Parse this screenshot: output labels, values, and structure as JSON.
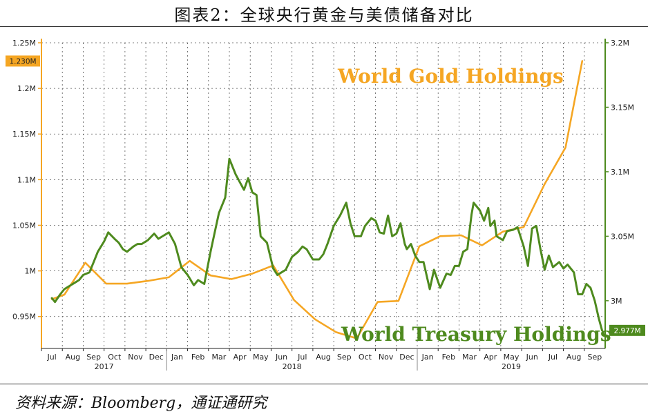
{
  "title": "图表2：全球央行黄金与美债储备对比",
  "source": "资料来源：Bloomberg，通证通研究",
  "colors": {
    "gold": "#F5A623",
    "treasury": "#4E8A1E",
    "axis": "#F5A623",
    "axis_right": "#4E8A1E"
  },
  "chart_data": {
    "type": "line",
    "y_left": {
      "range": [
        0.915,
        1.25
      ],
      "ticks": [
        1.25,
        1.2,
        1.15,
        1.1,
        1.05,
        1.0,
        0.95
      ],
      "tick_labels": [
        "1.25M",
        "1.2M",
        "1.15M",
        "1.1M",
        "1.05M",
        "1M",
        "0.95M"
      ]
    },
    "y_right": {
      "range": [
        2.963,
        3.2
      ],
      "ticks": [
        3.2,
        3.15,
        3.1,
        3.05,
        3.0
      ],
      "tick_labels": [
        "3.2M",
        "3.15M",
        "3.1M",
        "3.05M",
        "3M"
      ]
    },
    "x_ticks": [
      "Jul",
      "Aug",
      "Sep",
      "Oct",
      "Nov",
      "Dec",
      "Jan",
      "Feb",
      "Mar",
      "Apr",
      "May",
      "Jun",
      "Jul",
      "Aug",
      "Sep",
      "Oct",
      "Nov",
      "Dec",
      "Jan",
      "Feb",
      "Mar",
      "Apr",
      "May",
      "Jun",
      "Jul",
      "Aug",
      "Sep"
    ],
    "years": [
      "2017",
      "2018",
      "2019"
    ],
    "series": [
      {
        "name": "World Gold Holdings",
        "axis": "left",
        "x": [
          0,
          0.6,
          1.6,
          2.6,
          3.6,
          4.6,
          5.6,
          6.6,
          7.6,
          8.6,
          9.6,
          10.6,
          11.6,
          12.6,
          13.6,
          14.6,
          15.6,
          16.6,
          17.6,
          18.6,
          19.6,
          20.6,
          21.6,
          22.6,
          23.6,
          24.6,
          25.4
        ],
        "values": [
          0.969,
          0.974,
          1.009,
          0.986,
          0.986,
          0.989,
          0.993,
          1.011,
          0.995,
          0.991,
          0.997,
          1.006,
          0.968,
          0.947,
          0.933,
          0.926,
          0.966,
          0.967,
          1.027,
          1.038,
          1.039,
          1.028,
          1.043,
          1.048,
          1.0952,
          1.1352,
          1.23
        ]
      },
      {
        "name": "World Treasury Holdings",
        "axis": "right",
        "x": [
          0,
          0.15,
          0.4,
          0.6,
          0.9,
          1.1,
          1.3,
          1.5,
          1.8,
          2.0,
          2.2,
          2.5,
          2.7,
          3.0,
          3.2,
          3.4,
          3.6,
          3.9,
          4.1,
          4.3,
          4.6,
          4.9,
          5.1,
          5.3,
          5.6,
          5.9,
          6.2,
          6.5,
          6.8,
          7.0,
          7.3,
          7.6,
          7.8,
          8.0,
          8.3,
          8.5,
          8.8,
          9.0,
          9.2,
          9.4,
          9.6,
          9.8,
          10.0,
          10.3,
          10.6,
          10.8,
          11.0,
          11.2,
          11.5,
          11.8,
          12.0,
          12.2,
          12.5,
          12.8,
          13.0,
          13.2,
          13.5,
          13.8,
          14.1,
          14.3,
          14.5,
          14.8,
          15.0,
          15.3,
          15.5,
          15.7,
          15.9,
          16.1,
          16.3,
          16.5,
          16.7,
          16.9,
          17.0,
          17.2,
          17.4,
          17.6,
          17.8,
          18.1,
          18.3,
          18.6,
          18.9,
          19.1,
          19.3,
          19.5,
          19.7,
          19.9,
          20.1,
          20.2,
          20.5,
          20.7,
          20.9,
          21.0,
          21.2,
          21.3,
          21.6,
          21.8,
          22.1,
          22.3,
          22.5,
          22.6,
          22.8,
          23.0,
          23.2,
          23.4,
          23.6,
          23.8,
          24.0,
          24.3,
          24.5,
          24.7,
          25.0,
          25.2,
          25.4,
          25.6,
          25.8,
          26.0,
          26.2,
          26.35
        ],
        "values": [
          3.002,
          2.999,
          3.005,
          3.009,
          3.012,
          3.014,
          3.016,
          3.02,
          3.022,
          3.03,
          3.038,
          3.046,
          3.053,
          3.048,
          3.045,
          3.04,
          3.038,
          3.042,
          3.044,
          3.044,
          3.047,
          3.052,
          3.048,
          3.05,
          3.053,
          3.044,
          3.026,
          3.02,
          3.012,
          3.016,
          3.013,
          3.038,
          3.053,
          3.068,
          3.08,
          3.11,
          3.098,
          3.092,
          3.086,
          3.095,
          3.084,
          3.082,
          3.05,
          3.045,
          3.025,
          3.02,
          3.022,
          3.024,
          3.034,
          3.038,
          3.042,
          3.04,
          3.032,
          3.032,
          3.036,
          3.044,
          3.058,
          3.066,
          3.076,
          3.06,
          3.05,
          3.05,
          3.058,
          3.064,
          3.062,
          3.053,
          3.052,
          3.066,
          3.05,
          3.052,
          3.06,
          3.044,
          3.04,
          3.044,
          3.035,
          3.03,
          3.03,
          3.009,
          3.024,
          3.01,
          3.021,
          3.02,
          3.027,
          3.027,
          3.038,
          3.04,
          3.067,
          3.076,
          3.07,
          3.062,
          3.072,
          3.058,
          3.062,
          3.05,
          3.047,
          3.054,
          3.055,
          3.057,
          3.047,
          3.042,
          3.027,
          3.056,
          3.058,
          3.04,
          3.024,
          3.035,
          3.026,
          3.03,
          3.025,
          3.028,
          3.022,
          3.005,
          3.005,
          3.013,
          3.01,
          3.0,
          2.986,
          2.977
        ]
      }
    ],
    "labels": {
      "gold": "World Gold Holdings",
      "treasury": "World Treasury Holdings"
    },
    "value_badges": {
      "left": "1.230M",
      "right": "2.977M"
    },
    "grid": true
  }
}
